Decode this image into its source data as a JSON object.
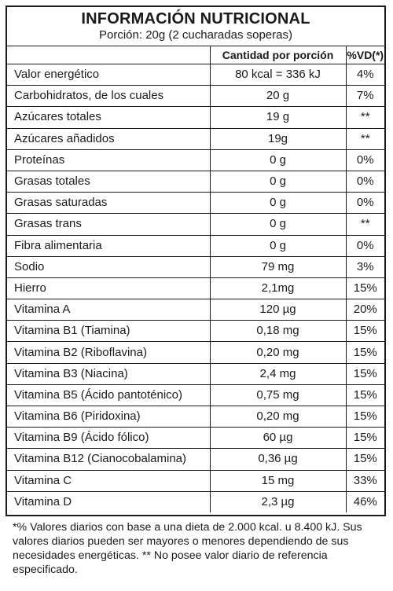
{
  "label": {
    "title": "INFORMACIÓN NUTRICIONAL",
    "serving": "Porción: 20g (2 cucharadas soperas)",
    "columns": [
      "",
      "Cantidad por porción",
      "%VD(*)"
    ],
    "rows": [
      {
        "name": "Valor energético",
        "amount": "80 kcal = 336 kJ",
        "dv": "4%"
      },
      {
        "name": "Carbohidratos, de los cuales",
        "amount": "20 g",
        "dv": "7%"
      },
      {
        "name": "Azúcares totales",
        "amount": "19 g",
        "dv": "**"
      },
      {
        "name": "Azúcares añadidos",
        "amount": "19g",
        "dv": "**"
      },
      {
        "name": "Proteínas",
        "amount": "0 g",
        "dv": "0%"
      },
      {
        "name": "Grasas totales",
        "amount": "0 g",
        "dv": "0%"
      },
      {
        "name": "Grasas saturadas",
        "amount": "0 g",
        "dv": "0%"
      },
      {
        "name": "Grasas trans",
        "amount": "0 g",
        "dv": "**"
      },
      {
        "name": "Fibra alimentaria",
        "amount": "0 g",
        "dv": "0%"
      },
      {
        "name": "Sodio",
        "amount": "79 mg",
        "dv": "3%"
      },
      {
        "name": "Hierro",
        "amount": "2,1mg",
        "dv": "15%"
      },
      {
        "name": "Vitamina A",
        "amount": "120 µg",
        "dv": "20%"
      },
      {
        "name": "Vitamina B1 (Tiamina)",
        "amount": "0,18 mg",
        "dv": "15%"
      },
      {
        "name": "Vitamina B2 (Riboflavina)",
        "amount": "0,20 mg",
        "dv": "15%"
      },
      {
        "name": "Vitamina B3 (Niacina)",
        "amount": "2,4 mg",
        "dv": "15%"
      },
      {
        "name": "Vitamina B5 (Ácido pantoténico)",
        "amount": "0,75 mg",
        "dv": "15%"
      },
      {
        "name": "Vitamina B6 (Piridoxina)",
        "amount": "0,20 mg",
        "dv": "15%"
      },
      {
        "name": "Vitamina B9 (Ácido fólico)",
        "amount": "60 µg",
        "dv": "15%"
      },
      {
        "name": "Vitamina B12 (Cianocobalamina)",
        "amount": "0,36 µg",
        "dv": "15%"
      },
      {
        "name": "Vitamina C",
        "amount": "15 mg",
        "dv": "33%"
      },
      {
        "name": "Vitamina D",
        "amount": "2,3 µg",
        "dv": "46%"
      }
    ]
  },
  "footnote": "*% Valores diarios con  base a una dieta de 2.000 kcal. u 8.400 kJ. Sus valores diarios pueden ser mayores  o   menores dependiendo de sus necesidades energéticas. ** No posee valor diario de referencia especificado."
}
